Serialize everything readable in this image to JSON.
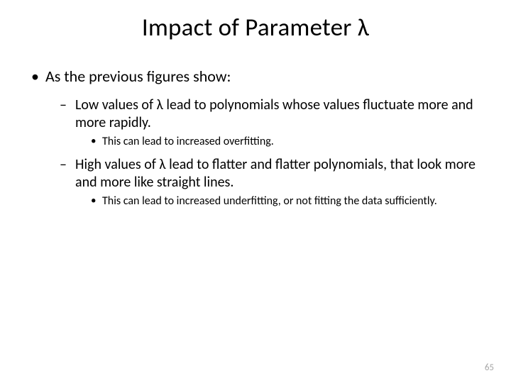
{
  "title": "Impact of Parameter λ",
  "bullets": {
    "l1_1": "As the previous figures show:",
    "l2_1": "Low values of λ lead to polynomials whose values fluctuate more and more rapidly.",
    "l3_1": "This can lead to increased overfitting.",
    "l2_2": "High values of λ lead to flatter and flatter polynomials, that look more and more like straight lines.",
    "l3_2": "This can lead to increased underfitting, or not fitting the data sufficiently."
  },
  "page_number": "65",
  "colors": {
    "text": "#000000",
    "background": "#ffffff",
    "page_number": "#a6a6a6"
  },
  "typography": {
    "title_fontsize": 35,
    "l1_fontsize": 22,
    "l2_fontsize": 20,
    "l3_fontsize": 16,
    "page_number_fontsize": 13,
    "font_family": "Calibri"
  }
}
